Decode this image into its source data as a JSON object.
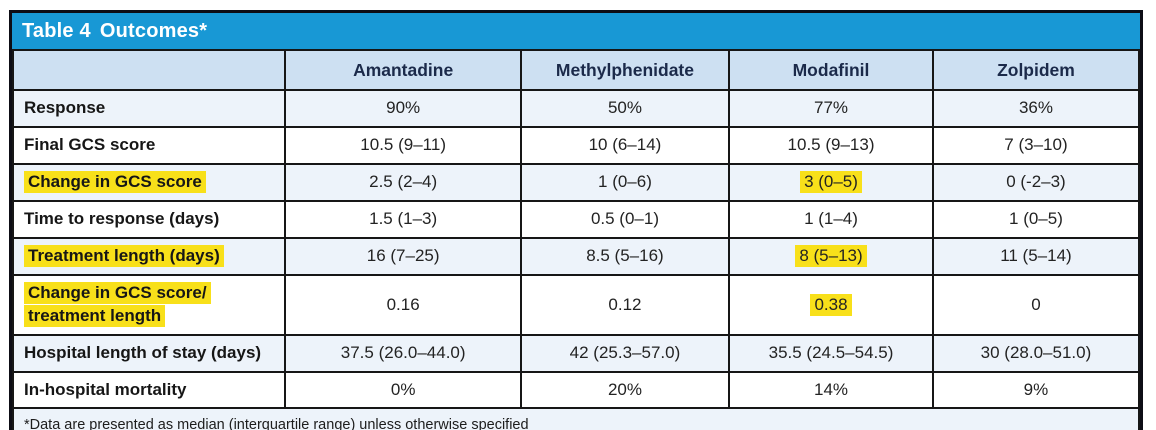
{
  "table": {
    "title_prefix": "Table 4",
    "title": "Outcomes*",
    "columns": [
      "Amantadine",
      "Methylphenidate",
      "Modafinil",
      "Zolpidem"
    ],
    "rows": [
      {
        "label": "Response",
        "label_highlight": false,
        "highlight_col": null,
        "values": [
          "90%",
          "50%",
          "77%",
          "36%"
        ]
      },
      {
        "label": "Final GCS score",
        "label_highlight": false,
        "highlight_col": null,
        "values": [
          "10.5 (9–11)",
          "10 (6–14)",
          "10.5 (9–13)",
          "7 (3–10)"
        ]
      },
      {
        "label": "Change in GCS score",
        "label_highlight": true,
        "highlight_col": 2,
        "values": [
          "2.5 (2–4)",
          "1 (0–6)",
          "3 (0–5)",
          "0 (-2–3)"
        ]
      },
      {
        "label": "Time to response (days)",
        "label_highlight": false,
        "highlight_col": null,
        "values": [
          "1.5 (1–3)",
          "0.5 (0–1)",
          "1 (1–4)",
          "1 (0–5)"
        ]
      },
      {
        "label": "Treatment length (days)",
        "label_highlight": true,
        "highlight_col": 2,
        "values": [
          "16 (7–25)",
          "8.5 (5–16)",
          "8 (5–13)",
          "11 (5–14)"
        ]
      },
      {
        "label": "Change in GCS score/\ntreatment length",
        "label_highlight": true,
        "highlight_col": 2,
        "values": [
          "0.16",
          "0.12",
          "0.38",
          "0"
        ]
      },
      {
        "label": "Hospital length of stay (days)",
        "label_highlight": false,
        "highlight_col": null,
        "values": [
          "37.5 (26.0–44.0)",
          "42 (25.3–57.0)",
          "35.5 (24.5–54.5)",
          "30 (28.0–51.0)"
        ]
      },
      {
        "label": "In-hospital mortality",
        "label_highlight": false,
        "highlight_col": null,
        "values": [
          "0%",
          "20%",
          "14%",
          "9%"
        ]
      }
    ],
    "footnote": "*Data are presented as median (interquartile range) unless otherwise specified",
    "colors": {
      "title_bar": "#1898d5",
      "header_bg": "#cde0f2",
      "alt_row_bg": "#edf3fa",
      "highlight": "#f8e01a",
      "outer_border": "#0d0d15"
    }
  }
}
